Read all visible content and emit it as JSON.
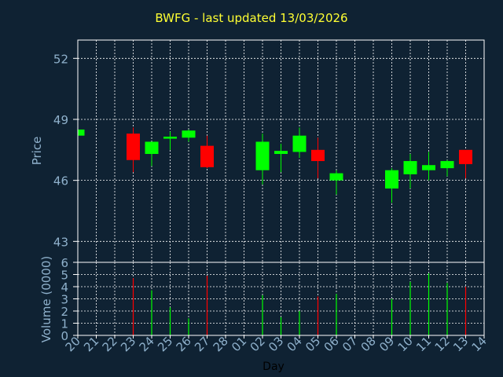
{
  "title": "BWFG - last updated 13/03/2026",
  "colors": {
    "background": "#0f2233",
    "title": "#ffff33",
    "axis_text": "#8fb1cc",
    "frame": "#ffffff",
    "grid": "#ffffff",
    "up": "#00ff00",
    "down": "#ff0000",
    "label_text": "#000000"
  },
  "chart_data": [
    {
      "type": "candlestick",
      "ylabel": "Price",
      "ylim": [
        41.97,
        52.9
      ],
      "yticks": [
        "52",
        "49",
        "46",
        "43"
      ],
      "ytick_values": [
        52,
        49,
        46,
        43
      ],
      "grid": true,
      "x_tick_labels": [
        "20",
        "21",
        "22",
        "23",
        "24",
        "25",
        "26",
        "27",
        "28",
        "01",
        "02",
        "03",
        "04",
        "05",
        "06",
        "07",
        "08",
        "09",
        "10",
        "11",
        "12",
        "13",
        "14"
      ],
      "candles": [
        {
          "x": "20",
          "open": 48.2,
          "high": 48.5,
          "low": 48.1,
          "close": 48.5,
          "dir": "up"
        },
        {
          "x": "23",
          "open": 48.3,
          "high": 48.6,
          "low": 46.4,
          "close": 47.0,
          "dir": "down"
        },
        {
          "x": "24",
          "open": 47.3,
          "high": 47.9,
          "low": 46.7,
          "close": 47.9,
          "dir": "up"
        },
        {
          "x": "25",
          "open": 48.05,
          "high": 48.4,
          "low": 47.5,
          "close": 48.15,
          "dir": "up"
        },
        {
          "x": "26",
          "open": 48.1,
          "high": 48.5,
          "low": 47.9,
          "close": 48.45,
          "dir": "up"
        },
        {
          "x": "27",
          "open": 47.7,
          "high": 48.2,
          "low": 46.6,
          "close": 46.65,
          "dir": "down"
        },
        {
          "x": "02",
          "open": 46.5,
          "high": 48.3,
          "low": 45.8,
          "close": 47.9,
          "dir": "up"
        },
        {
          "x": "03",
          "open": 47.3,
          "high": 47.8,
          "low": 46.4,
          "close": 47.45,
          "dir": "up"
        },
        {
          "x": "04",
          "open": 47.4,
          "high": 48.6,
          "low": 47.1,
          "close": 48.2,
          "dir": "up"
        },
        {
          "x": "05",
          "open": 47.5,
          "high": 48.1,
          "low": 46.1,
          "close": 46.95,
          "dir": "down"
        },
        {
          "x": "06",
          "open": 46.0,
          "high": 46.5,
          "low": 45.3,
          "close": 46.35,
          "dir": "up"
        },
        {
          "x": "09",
          "open": 45.6,
          "high": 46.6,
          "low": 44.9,
          "close": 46.5,
          "dir": "up"
        },
        {
          "x": "10",
          "open": 46.3,
          "high": 47.3,
          "low": 45.6,
          "close": 46.95,
          "dir": "up"
        },
        {
          "x": "11",
          "open": 46.5,
          "high": 47.4,
          "low": 46.0,
          "close": 46.75,
          "dir": "up"
        },
        {
          "x": "12",
          "open": 46.6,
          "high": 47.0,
          "low": 46.2,
          "close": 46.95,
          "dir": "up"
        },
        {
          "x": "13",
          "open": 47.5,
          "high": 47.5,
          "low": 46.1,
          "close": 46.8,
          "dir": "down"
        }
      ]
    },
    {
      "type": "bar",
      "ylabel": "Volume (0000)",
      "xlabel": "Day",
      "ylim": [
        0,
        6
      ],
      "yticks": [
        "6",
        "5",
        "4",
        "3",
        "2",
        "1",
        "0"
      ],
      "ytick_values": [
        6,
        5,
        4,
        3,
        2,
        1,
        0
      ],
      "grid": true,
      "bars": [
        {
          "x": "23",
          "value": 4.7,
          "dir": "down"
        },
        {
          "x": "24",
          "value": 3.7,
          "dir": "up"
        },
        {
          "x": "25",
          "value": 2.3,
          "dir": "up"
        },
        {
          "x": "26",
          "value": 1.4,
          "dir": "up"
        },
        {
          "x": "27",
          "value": 4.9,
          "dir": "down"
        },
        {
          "x": "02",
          "value": 3.3,
          "dir": "up"
        },
        {
          "x": "03",
          "value": 1.5,
          "dir": "up"
        },
        {
          "x": "04",
          "value": 2.0,
          "dir": "up"
        },
        {
          "x": "05",
          "value": 3.2,
          "dir": "down"
        },
        {
          "x": "06",
          "value": 3.4,
          "dir": "up"
        },
        {
          "x": "09",
          "value": 3.0,
          "dir": "up"
        },
        {
          "x": "10",
          "value": 4.4,
          "dir": "up"
        },
        {
          "x": "11",
          "value": 5.1,
          "dir": "up"
        },
        {
          "x": "12",
          "value": 4.3,
          "dir": "up"
        },
        {
          "x": "13",
          "value": 4.0,
          "dir": "down"
        }
      ]
    }
  ]
}
